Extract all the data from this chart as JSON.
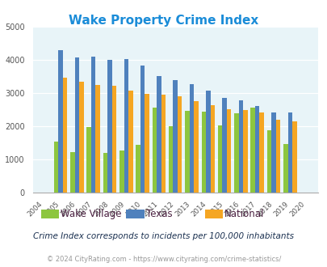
{
  "title": "Wake Property Crime Index",
  "years": [
    2004,
    2005,
    2006,
    2007,
    2008,
    2009,
    2010,
    2011,
    2012,
    2013,
    2014,
    2015,
    2016,
    2017,
    2018,
    2019,
    2020
  ],
  "wake_village": [
    null,
    1520,
    1220,
    1960,
    1180,
    1260,
    1430,
    2560,
    2000,
    2460,
    2430,
    2020,
    2390,
    2560,
    1860,
    1460,
    null
  ],
  "texas": [
    null,
    4300,
    4080,
    4100,
    4000,
    4030,
    3820,
    3500,
    3380,
    3270,
    3060,
    2860,
    2780,
    2610,
    2400,
    2400,
    null
  ],
  "national": [
    null,
    3450,
    3340,
    3250,
    3220,
    3060,
    2960,
    2950,
    2890,
    2760,
    2620,
    2510,
    2480,
    2400,
    2200,
    2150,
    null
  ],
  "bar_colors": {
    "wake_village": "#8dc63f",
    "texas": "#4f81bd",
    "national": "#f5a623"
  },
  "ylim": [
    0,
    5000
  ],
  "yticks": [
    0,
    1000,
    2000,
    3000,
    4000,
    5000
  ],
  "bg_color": "#e8f4f8",
  "grid_color": "#ffffff",
  "subtitle": "Crime Index corresponds to incidents per 100,000 inhabitants",
  "footer": "© 2024 CityRating.com - https://www.cityrating.com/crime-statistics/",
  "legend_labels": [
    "Wake Village",
    "Texas",
    "National"
  ],
  "title_color": "#1a8cd8",
  "legend_text_color": "#4a2040",
  "subtitle_color": "#1a3050",
  "footer_color": "#999999",
  "footer_link_color": "#4488cc"
}
